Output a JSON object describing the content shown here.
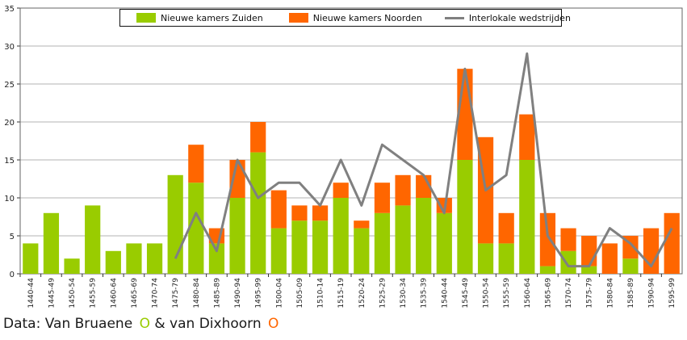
{
  "chart_data": {
    "type": "bar",
    "stacked": true,
    "categories": [
      "1440-44",
      "1445-49",
      "1450-54",
      "1455-59",
      "1460-64",
      "1465-69",
      "1470-74",
      "1475-79",
      "1480-84",
      "1485-89",
      "1490-94",
      "1495-99",
      "1500-04",
      "1505-09",
      "1510-14",
      "1515-19",
      "1520-24",
      "1525-29",
      "1530-34",
      "1535-39",
      "1540-44",
      "1545-49",
      "1550-54",
      "1555-59",
      "1560-64",
      "1565-69",
      "1570-74",
      "1575-79",
      "1580-84",
      "1585-89",
      "1590-94",
      "1595-99"
    ],
    "series": [
      {
        "name": "Nieuwe kamers Zuiden",
        "type": "bar",
        "color": "#99cc00",
        "values": [
          4,
          8,
          2,
          9,
          3,
          4,
          4,
          13,
          12,
          4,
          10,
          16,
          6,
          7,
          7,
          10,
          6,
          8,
          9,
          10,
          8,
          15,
          4,
          4,
          15,
          1,
          3,
          1,
          0,
          2,
          0,
          0
        ]
      },
      {
        "name": "Nieuwe kamers Noorden",
        "type": "bar",
        "color": "#ff6600",
        "values": [
          0,
          0,
          0,
          0,
          0,
          0,
          0,
          0,
          5,
          2,
          5,
          4,
          5,
          2,
          2,
          2,
          1,
          4,
          4,
          3,
          2,
          12,
          14,
          4,
          6,
          7,
          3,
          4,
          4,
          3,
          6,
          8
        ]
      },
      {
        "name": "Interlokale wedstrijden",
        "type": "line",
        "color": "#808080",
        "values": [
          null,
          null,
          null,
          null,
          null,
          null,
          null,
          2,
          8,
          3,
          15,
          10,
          12,
          12,
          9,
          15,
          9,
          17,
          15,
          13,
          8,
          27,
          11,
          13,
          29,
          5,
          1,
          1,
          6,
          4,
          1,
          6
        ]
      }
    ],
    "yticks": [
      0,
      5,
      10,
      15,
      20,
      25,
      30,
      35
    ],
    "ylim": [
      0,
      35
    ],
    "grid": true,
    "legend_position": "top"
  },
  "caption": {
    "text": "Data: Van Bruaene",
    "symbol_1": "O",
    "connector": "& van Dixhoorn",
    "symbol_2": "O"
  }
}
